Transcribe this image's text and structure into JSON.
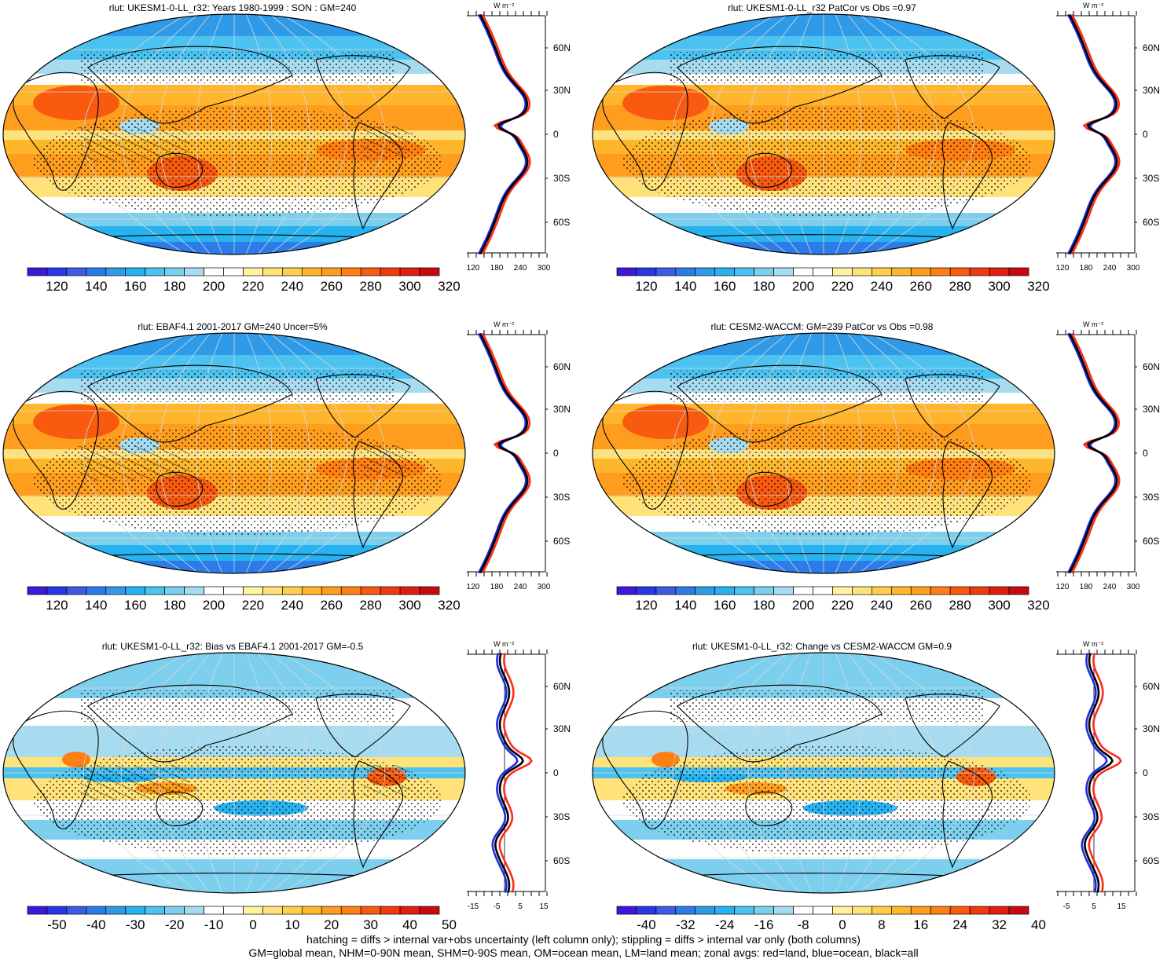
{
  "panels": [
    {
      "title": "rlut: UKESM1-0-LL_r32: Years 1980-1999 : SON : GM=240",
      "kind": "abs",
      "colorbar": {
        "labels": [
          "120",
          "140",
          "160",
          "180",
          "200",
          "220",
          "240",
          "260",
          "280",
          "300",
          "320"
        ]
      },
      "zonal": {
        "unit": "W m⁻²",
        "xticks": [
          "120",
          "180",
          "240",
          "300"
        ],
        "yticks": [
          "60N",
          "30N",
          "0",
          "30S",
          "60S"
        ]
      }
    },
    {
      "title": "rlut: UKESM1-0-LL_r32 PatCor vs Obs =0.97",
      "kind": "abs",
      "colorbar": {
        "labels": [
          "120",
          "140",
          "160",
          "180",
          "200",
          "220",
          "240",
          "260",
          "280",
          "300",
          "320"
        ]
      },
      "zonal": {
        "unit": "W m⁻²",
        "xticks": [
          "120",
          "180",
          "240",
          "300"
        ],
        "yticks": [
          "60N",
          "30N",
          "0",
          "30S",
          "60S"
        ]
      }
    },
    {
      "title": "rlut: EBAF4.1 2001-2017 GM=240 Uncer=5%",
      "kind": "abs",
      "colorbar": {
        "labels": [
          "120",
          "140",
          "160",
          "180",
          "200",
          "220",
          "240",
          "260",
          "280",
          "300",
          "320"
        ]
      },
      "zonal": {
        "unit": "W m⁻²",
        "xticks": [
          "120",
          "180",
          "240",
          "300"
        ],
        "yticks": [
          "60N",
          "30N",
          "0",
          "30S",
          "60S"
        ]
      }
    },
    {
      "title": "rlut: CESM2-WACCM: GM=239 PatCor vs Obs =0.98",
      "kind": "abs",
      "colorbar": {
        "labels": [
          "120",
          "140",
          "160",
          "180",
          "200",
          "220",
          "240",
          "260",
          "280",
          "300",
          "320"
        ]
      },
      "zonal": {
        "unit": "W m⁻²",
        "xticks": [
          "120",
          "180",
          "240",
          "300"
        ],
        "yticks": [
          "60N",
          "30N",
          "0",
          "30S",
          "60S"
        ]
      }
    },
    {
      "title": "rlut: UKESM1-0-LL_r32: Bias vs EBAF4.1 2001-2017  GM=-0.5",
      "kind": "bias",
      "colorbar": {
        "labels": [
          "-50",
          "-40",
          "-30",
          "-20",
          "-10",
          "0",
          "10",
          "20",
          "30",
          "40",
          "50"
        ]
      },
      "zonal": {
        "unit": "W m⁻²",
        "xticks": [
          "-15",
          "-5",
          "5",
          "15"
        ],
        "yticks": [
          "60N",
          "30N",
          "0",
          "30S",
          "60S"
        ]
      }
    },
    {
      "title": "rlut: UKESM1-0-LL_r32: Change vs CESM2-WACCM GM=0.9",
      "kind": "change",
      "colorbar": {
        "labels": [
          "-40",
          "-32",
          "-24",
          "-16",
          "-8",
          "0",
          "8",
          "16",
          "24",
          "32",
          "40"
        ]
      },
      "zonal": {
        "unit": "W m⁻²",
        "xticks": [
          "-5",
          "5",
          "15"
        ],
        "yticks": [
          "60N",
          "30N",
          "0",
          "30S",
          "60S"
        ]
      }
    }
  ],
  "colors": {
    "scale": [
      "#3c17dc",
      "#2738e6",
      "#3c5ae6",
      "#2b7ce8",
      "#2f9be8",
      "#27b2f0",
      "#4bc2f0",
      "#7dcfee",
      "#a7dcf0",
      "#ffffff",
      "#ffffff",
      "#fff2a0",
      "#ffe37a",
      "#ffcf4a",
      "#ffb62d",
      "#ff9d1e",
      "#ff7f12",
      "#f85a10",
      "#f03a0e",
      "#e01e10",
      "#c80a10"
    ],
    "land": "#ff2a1a",
    "ocean": "#1a2ae6",
    "all": "#000000"
  },
  "footer": {
    "line1": "hatching = diffs > internal var+obs uncertainty (left column only); stippling = diffs > internal var only (both columns)",
    "line2": "GM=global mean, NHM=0-90N mean, SHM=0-90S mean, OM=ocean mean, LM=land mean; zonal avgs: red=land, blue=ocean, black=all"
  }
}
